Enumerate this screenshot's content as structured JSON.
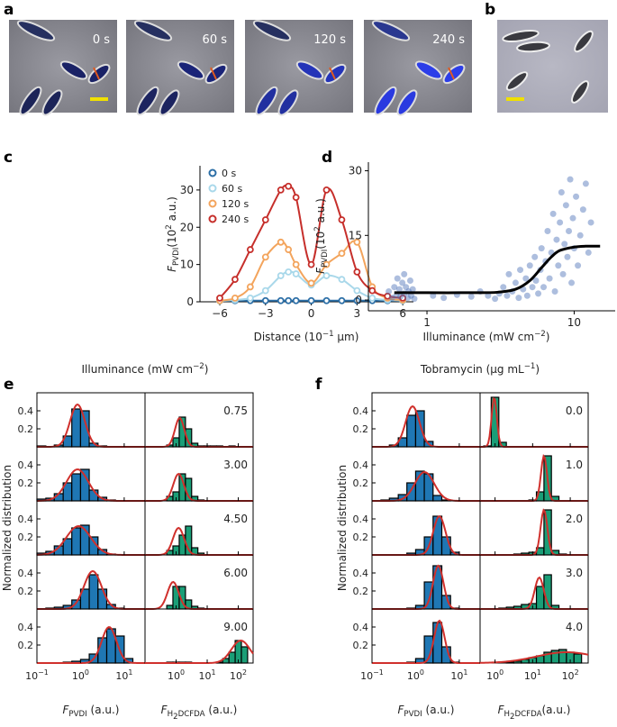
{
  "figure": {
    "panel_labels": [
      "a",
      "b",
      "c",
      "d",
      "e",
      "f"
    ],
    "time_labels": [
      "0 s",
      "60 s",
      "120 s",
      "240 s"
    ]
  },
  "chart_data": [
    {
      "type": "line",
      "ylabel": [
        "F",
        "PVDI",
        "(10",
        "2",
        " a.u.)"
      ],
      "xlabel": [
        "Distance (10",
        "−1",
        " μm)"
      ],
      "xlim": [
        -7.3,
        6.7
      ],
      "ylim": [
        0,
        36.5
      ],
      "xticks": [
        {
          "value": -6,
          "label": "−6"
        },
        {
          "value": -3,
          "label": "−3"
        },
        0,
        3,
        6
      ],
      "yticks": [
        0,
        10,
        20,
        30
      ],
      "legend": "upper left",
      "x": [
        -6,
        -5,
        -4,
        -3,
        -2,
        -1.5,
        -1,
        0,
        1,
        2,
        3,
        4,
        5,
        6
      ],
      "series": [
        {
          "name": "0 s",
          "color": "#2b6ea6",
          "values": [
            0.3,
            0.3,
            0.3,
            0.3,
            0.3,
            0.3,
            0.3,
            0.3,
            0.3,
            0.3,
            0.3,
            0.3,
            0.3,
            0.3
          ]
        },
        {
          "name": "60 s",
          "color": "#a9d8ea",
          "values": [
            0.2,
            0.5,
            1,
            3,
            7,
            8,
            7.5,
            4.5,
            7,
            6,
            3,
            1,
            0.5,
            0.3
          ]
        },
        {
          "name": "120 s",
          "color": "#f3a45c",
          "values": [
            0.3,
            1,
            4,
            12,
            16,
            14,
            10,
            5,
            10,
            13,
            16,
            4,
            1,
            0.5
          ]
        },
        {
          "name": "240 s",
          "color": "#c62f2b",
          "values": [
            1,
            6,
            14,
            22,
            30,
            31,
            28,
            10,
            30,
            22,
            8,
            3,
            1.5,
            1
          ]
        }
      ]
    },
    {
      "type": "scatter",
      "ylabel": [
        "F",
        "PVDI",
        "(10",
        "2",
        " a.u.)"
      ],
      "xlabel": [
        "Illuminance (mW cm",
        "−2",
        ")"
      ],
      "xscale": "log",
      "xlim": [
        0.4,
        19
      ],
      "ylim": [
        -2.5,
        32
      ],
      "xticks": [
        1,
        10
      ],
      "yticks": [
        0,
        15,
        30
      ],
      "points": {
        "color": "#4a6fb5",
        "x": [
          0.55,
          0.58,
          0.6,
          0.62,
          0.63,
          0.65,
          0.66,
          0.68,
          0.7,
          0.7,
          0.72,
          0.74,
          0.75,
          0.77,
          0.78,
          0.8,
          0.82,
          1.1,
          1.3,
          1.6,
          2,
          2.3,
          2.6,
          2.9,
          3.1,
          3.3,
          3.5,
          3.6,
          3.8,
          4,
          4.2,
          4.3,
          4.5,
          4.7,
          4.8,
          5,
          5.2,
          5.4,
          5.5,
          5.7,
          5.9,
          6,
          6.2,
          6.4,
          6.6,
          6.8,
          7,
          7.2,
          7.4,
          7.6,
          7.8,
          8,
          8.2,
          8.4,
          8.6,
          8.8,
          9,
          9.2,
          9.4,
          9.6,
          9.8,
          10,
          10.3,
          10.6,
          11,
          11.5,
          12,
          12.5,
          13
        ],
        "y": [
          2,
          0.5,
          3,
          1,
          5,
          2.5,
          0.8,
          4,
          1.5,
          6,
          3,
          0.5,
          2,
          4.5,
          1,
          2.5,
          0.3,
          1,
          0.5,
          1.2,
          0.8,
          2,
          1,
          0.3,
          1.5,
          3,
          1,
          6,
          2,
          4,
          0.5,
          7,
          2.5,
          5,
          1,
          8,
          3,
          10,
          4.5,
          1.5,
          7,
          12,
          3,
          9,
          16,
          5,
          11,
          20,
          2,
          14,
          8,
          18,
          25,
          6,
          13,
          22,
          10,
          16,
          28,
          4,
          19,
          12,
          24,
          8,
          15,
          21,
          27,
          11,
          18
        ]
      },
      "fit": {
        "color": "#000000",
        "x": [
          0.6,
          1,
          2,
          3,
          4,
          5,
          6,
          7,
          8,
          10,
          12,
          15
        ],
        "y": [
          1.7,
          1.7,
          1.7,
          1.8,
          2.5,
          4.5,
          7.5,
          10,
          11.5,
          12.3,
          12.5,
          12.5
        ]
      }
    },
    {
      "type": "histogram",
      "title": [
        "Illuminance (mW cm",
        "−2",
        ")"
      ],
      "ylabel": "Normalized distribution",
      "ylim": [
        0,
        0.6
      ],
      "yticks": [
        0.2,
        0.4
      ],
      "fit_color": "#d0302c",
      "row_labels": [
        "0.75",
        "3.00",
        "4.50",
        "6.00",
        "9.00"
      ],
      "columns": [
        {
          "xlabel": [
            "F",
            "PVDI",
            " (a.u.)"
          ],
          "xscale": "log",
          "xlim": [
            0.1,
            30
          ],
          "xticks": [
            {
              "value": 0.1,
              "label": [
                "10",
                "−1"
              ]
            },
            {
              "value": 1,
              "label": [
                "10",
                "0"
              ]
            },
            {
              "value": 10,
              "label": [
                "10",
                "1"
              ]
            }
          ],
          "color": "#1f77b4",
          "bins": [
            0.1,
            0.16,
            0.25,
            0.4,
            0.63,
            1,
            1.58,
            2.51,
            3.98,
            6.31,
            10,
            15.8,
            25.1
          ],
          "rows": [
            {
              "values": [
                0.01,
                0,
                0.02,
                0.12,
                0.42,
                0.4,
                0.04,
                0.01,
                0,
                0,
                0,
                0
              ],
              "fit": {
                "center": 0.85,
                "peak": 0.47,
                "width": 0.17
              }
            },
            {
              "values": [
                0.02,
                0.03,
                0.08,
                0.2,
                0.3,
                0.35,
                0.12,
                0.04,
                0.01,
                0,
                0,
                0
              ],
              "fit": {
                "center": 0.85,
                "peak": 0.35,
                "width": 0.25
              }
            },
            {
              "values": [
                0.02,
                0.04,
                0.1,
                0.18,
                0.3,
                0.33,
                0.2,
                0.06,
                0.01,
                0,
                0,
                0
              ],
              "fit": {
                "center": 0.9,
                "peak": 0.32,
                "width": 0.28
              }
            },
            {
              "values": [
                0,
                0.01,
                0.02,
                0.04,
                0.1,
                0.22,
                0.38,
                0.22,
                0.05,
                0.01,
                0,
                0
              ],
              "fit": {
                "center": 1.9,
                "peak": 0.42,
                "width": 0.2
              }
            },
            {
              "values": [
                0,
                0,
                0,
                0.01,
                0.02,
                0.04,
                0.1,
                0.28,
                0.38,
                0.3,
                0.05,
                0
              ],
              "fit": {
                "center": 4.5,
                "peak": 0.4,
                "width": 0.17
              }
            }
          ]
        },
        {
          "xlabel": [
            "F",
            "H",
            "2",
            "DCFDA",
            " (a.u.)"
          ],
          "xscale": "log",
          "xlim": [
            0.1,
            300
          ],
          "xticks": [
            {
              "value": 1,
              "label": [
                "10",
                "0"
              ]
            },
            {
              "value": 10,
              "label": [
                "10",
                "1"
              ]
            },
            {
              "value": 100,
              "label": [
                "10",
                "2"
              ]
            }
          ],
          "color": "#1a9e77",
          "bins": [
            0.5,
            0.79,
            1.26,
            2,
            3.16,
            5.01,
            7.94,
            12.6,
            20,
            31.6,
            50.1,
            79.4,
            126,
            200
          ],
          "rows": [
            {
              "values": [
                0.02,
                0.1,
                0.33,
                0.2,
                0.04,
                0.01,
                0.01,
                0.01,
                0.01,
                0,
                0.01,
                0,
                0
              ],
              "fit": {
                "center": 1.3,
                "peak": 0.32,
                "width": 0.15
              }
            },
            {
              "values": [
                0.05,
                0.1,
                0.3,
                0.25,
                0.05,
                0.01,
                0,
                0,
                0,
                0,
                0,
                0,
                0
              ],
              "fit": {
                "center": 1.2,
                "peak": 0.3,
                "width": 0.17
              }
            },
            {
              "values": [
                0.05,
                0.1,
                0.22,
                0.32,
                0.08,
                0.02,
                0,
                0,
                0,
                0,
                0,
                0,
                0
              ],
              "fit": {
                "center": 1.2,
                "peak": 0.3,
                "width": 0.18
              }
            },
            {
              "values": [
                0.04,
                0.25,
                0.25,
                0.1,
                0.03,
                0.01,
                0,
                0,
                0,
                0,
                0,
                0,
                0
              ],
              "fit": {
                "center": 0.8,
                "peak": 0.3,
                "width": 0.18
              }
            },
            {
              "values": [
                0.01,
                0.01,
                0.01,
                0.01,
                0,
                0,
                0,
                0,
                0.01,
                0.05,
                0.12,
                0.25,
                0.18
              ],
              "fit": {
                "center": 120,
                "peak": 0.25,
                "width": 0.3
              }
            }
          ]
        }
      ]
    },
    {
      "type": "histogram",
      "title": [
        "Tobramycin (μg mL",
        "−1",
        ")"
      ],
      "ylabel": "Normalized distribution",
      "ylim": [
        0,
        0.6
      ],
      "yticks": [
        0.2,
        0.4
      ],
      "fit_color": "#d0302c",
      "row_labels": [
        "0.0",
        "1.0",
        "2.0",
        "3.0",
        "4.0"
      ],
      "columns": [
        {
          "xlabel": [
            "F",
            "PVDI",
            " (a.u.)"
          ],
          "xscale": "log",
          "xlim": [
            0.1,
            30
          ],
          "xticks": [
            {
              "value": 0.1,
              "label": [
                "10",
                "−1"
              ]
            },
            {
              "value": 1,
              "label": [
                "10",
                "0"
              ]
            },
            {
              "value": 10,
              "label": [
                "10",
                "1"
              ]
            }
          ],
          "color": "#1f77b4",
          "bins": [
            0.1,
            0.16,
            0.25,
            0.4,
            0.63,
            1,
            1.58,
            2.51,
            3.98,
            6.31,
            10,
            15.8,
            25.1
          ],
          "rows": [
            {
              "values": [
                0,
                0,
                0.02,
                0.1,
                0.35,
                0.4,
                0.06,
                0,
                0,
                0,
                0,
                0
              ],
              "fit": {
                "center": 0.85,
                "peak": 0.45,
                "width": 0.16
              }
            },
            {
              "values": [
                0,
                0.01,
                0.03,
                0.07,
                0.2,
                0.33,
                0.3,
                0.06,
                0.01,
                0,
                0,
                0
              ],
              "fit": {
                "center": 1.6,
                "peak": 0.32,
                "width": 0.22
              }
            },
            {
              "values": [
                0,
                0,
                0,
                0,
                0.02,
                0.06,
                0.2,
                0.43,
                0.2,
                0.03,
                0,
                0
              ],
              "fit": {
                "center": 3.5,
                "peak": 0.43,
                "width": 0.14
              }
            },
            {
              "values": [
                0,
                0,
                0,
                0,
                0.01,
                0.04,
                0.3,
                0.48,
                0.15,
                0.01,
                0,
                0
              ],
              "fit": {
                "center": 3.3,
                "peak": 0.48,
                "width": 0.12
              }
            },
            {
              "values": [
                0,
                0,
                0,
                0,
                0.01,
                0.05,
                0.3,
                0.45,
                0.18,
                0.01,
                0,
                0
              ],
              "fit": {
                "center": 3.5,
                "peak": 0.47,
                "width": 0.12
              }
            }
          ]
        },
        {
          "xlabel": [
            "F",
            "H",
            "2",
            "DCFDA",
            "(a.u.)"
          ],
          "xscale": "log",
          "xlim": [
            0.4,
            300
          ],
          "xticks": [
            {
              "value": 1,
              "label": [
                "10",
                "0"
              ]
            },
            {
              "value": 10,
              "label": [
                "10",
                "1"
              ]
            },
            {
              "value": 100,
              "label": [
                "10",
                "2"
              ]
            }
          ],
          "color": "#1a9e77",
          "bins": [
            0.5,
            0.79,
            1.26,
            2,
            3.16,
            5.01,
            7.94,
            12.6,
            20,
            31.6,
            50.1,
            79.4,
            126,
            200
          ],
          "rows": [
            {
              "values": [
                0.01,
                0.55,
                0.05,
                0,
                0,
                0,
                0,
                0,
                0,
                0,
                0,
                0,
                0
              ],
              "fit": {
                "center": 0.95,
                "peak": 0.55,
                "width": 0.07
              }
            },
            {
              "values": [
                0,
                0,
                0,
                0,
                0,
                0,
                0.01,
                0.1,
                0.5,
                0.05,
                0,
                0,
                0
              ],
              "fit": {
                "center": 20,
                "peak": 0.5,
                "width": 0.08
              }
            },
            {
              "values": [
                0,
                0,
                0,
                0,
                0.01,
                0.02,
                0.03,
                0.08,
                0.5,
                0.05,
                0.01,
                0,
                0
              ],
              "fit": {
                "center": 20,
                "peak": 0.5,
                "width": 0.09
              }
            },
            {
              "values": [
                0,
                0,
                0.01,
                0.02,
                0.03,
                0.05,
                0.06,
                0.25,
                0.38,
                0.04,
                0,
                0,
                0
              ],
              "fit": {
                "center": 15,
                "peak": 0.35,
                "width": 0.12
              }
            },
            {
              "values": [
                0,
                0,
                0,
                0.01,
                0.02,
                0.04,
                0.06,
                0.08,
                0.12,
                0.14,
                0.15,
                0.12,
                0.1
              ],
              "fit": {
                "center": 80,
                "peak": 0.12,
                "width": 0.8
              }
            }
          ]
        }
      ]
    }
  ]
}
